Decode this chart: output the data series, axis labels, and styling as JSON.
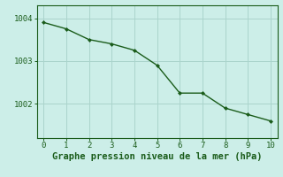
{
  "x": [
    0,
    1,
    2,
    3,
    4,
    5,
    6,
    7,
    8,
    9,
    10
  ],
  "y": [
    1003.9,
    1003.75,
    1003.5,
    1003.4,
    1003.25,
    1002.9,
    1002.25,
    1002.25,
    1001.9,
    1001.75,
    1001.6
  ],
  "line_color": "#1a5c1a",
  "marker": "D",
  "marker_size": 2.0,
  "line_width": 1.0,
  "background_color": "#cceee8",
  "grid_color": "#aad4cc",
  "xlabel": "Graphe pression niveau de la mer (hPa)",
  "xlabel_fontsize": 7.5,
  "xlabel_color": "#1a5c1a",
  "xlabel_bold": true,
  "yticks": [
    1002,
    1003,
    1004
  ],
  "xticks": [
    0,
    1,
    2,
    3,
    4,
    5,
    6,
    7,
    8,
    9,
    10
  ],
  "ylim": [
    1001.2,
    1004.3
  ],
  "xlim": [
    -0.3,
    10.3
  ],
  "tick_color": "#1a5c1a",
  "tick_fontsize": 6.5,
  "spine_color": "#1a5c1a"
}
